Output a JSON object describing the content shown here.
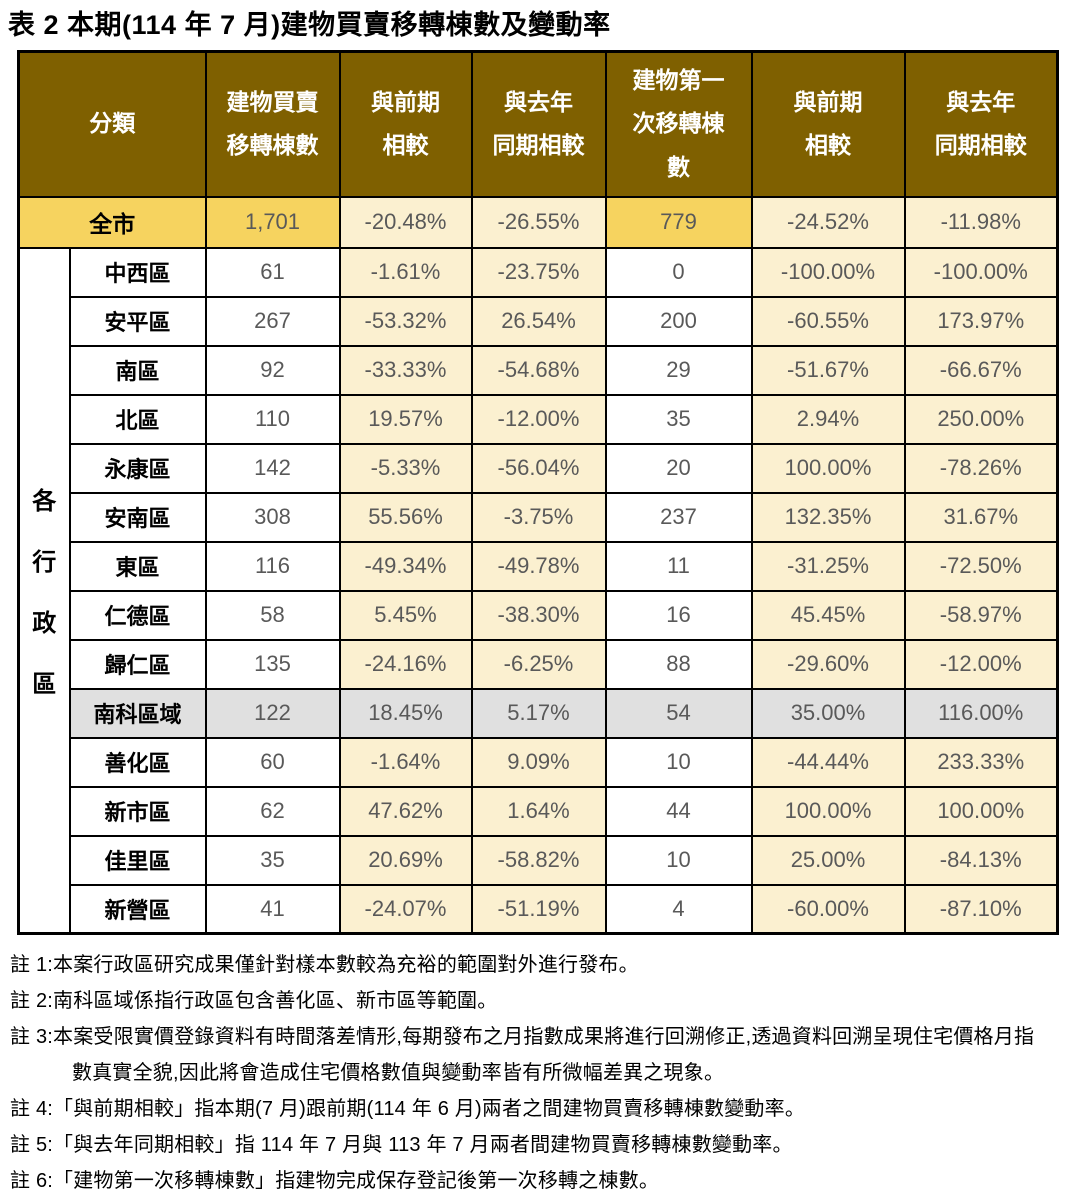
{
  "title": "表 2 本期(114 年 7 月)建物買賣移轉棟數及變動率",
  "table": {
    "headers": [
      "分類",
      "建物買賣\n移轉棟數",
      "與前期\n相較",
      "與去年\n同期相較",
      "建物第一\n次移轉棟\n數",
      "與前期\n相較",
      "與去年\n同期相較"
    ],
    "group_label": "各行政區",
    "citywide": {
      "name": "全市",
      "values": [
        "1,701",
        "-20.48%",
        "-26.55%",
        "779",
        "-24.52%",
        "-11.98%"
      ]
    },
    "districts": [
      {
        "name": "中西區",
        "values": [
          "61",
          "-1.61%",
          "-23.75%",
          "0",
          "-100.00%",
          "-100.00%"
        ]
      },
      {
        "name": "安平區",
        "values": [
          "267",
          "-53.32%",
          "26.54%",
          "200",
          "-60.55%",
          "173.97%"
        ]
      },
      {
        "name": "南區",
        "values": [
          "92",
          "-33.33%",
          "-54.68%",
          "29",
          "-51.67%",
          "-66.67%"
        ]
      },
      {
        "name": "北區",
        "values": [
          "110",
          "19.57%",
          "-12.00%",
          "35",
          "2.94%",
          "250.00%"
        ]
      },
      {
        "name": "永康區",
        "values": [
          "142",
          "-5.33%",
          "-56.04%",
          "20",
          "100.00%",
          "-78.26%"
        ]
      },
      {
        "name": "安南區",
        "values": [
          "308",
          "55.56%",
          "-3.75%",
          "237",
          "132.35%",
          "31.67%"
        ]
      },
      {
        "name": "東區",
        "values": [
          "116",
          "-49.34%",
          "-49.78%",
          "11",
          "-31.25%",
          "-72.50%"
        ]
      },
      {
        "name": "仁德區",
        "values": [
          "58",
          "5.45%",
          "-38.30%",
          "16",
          "45.45%",
          "-58.97%"
        ]
      },
      {
        "name": "歸仁區",
        "values": [
          "135",
          "-24.16%",
          "-6.25%",
          "88",
          "-29.60%",
          "-12.00%"
        ]
      },
      {
        "name": "南科區域",
        "values": [
          "122",
          "18.45%",
          "5.17%",
          "54",
          "35.00%",
          "116.00%"
        ],
        "highlight": "gray"
      },
      {
        "name": "善化區",
        "values": [
          "60",
          "-1.64%",
          "9.09%",
          "10",
          "-44.44%",
          "233.33%"
        ]
      },
      {
        "name": "新市區",
        "values": [
          "62",
          "47.62%",
          "1.64%",
          "44",
          "100.00%",
          "100.00%"
        ]
      },
      {
        "name": "佳里區",
        "values": [
          "35",
          "20.69%",
          "-58.82%",
          "10",
          "25.00%",
          "-84.13%"
        ]
      },
      {
        "name": "新營區",
        "values": [
          "41",
          "-24.07%",
          "-51.19%",
          "4",
          "-60.00%",
          "-87.10%"
        ]
      }
    ]
  },
  "notes": [
    "註 1:本案行政區研究成果僅針對樣本數較為充裕的範圍對外進行發布。",
    "註 2:南科區域係指行政區包含善化區、新市區等範圍。",
    "註 3:本案受限實價登錄資料有時間落差情形,每期發布之月指數成果將進行回溯修正,透過資料回溯呈現住宅價格月指數真實全貌,因此將會造成住宅價格數值與變動率皆有所微幅差異之現象。",
    "註 4:「與前期相較」指本期(7 月)跟前期(114 年 6 月)兩者之間建物買賣移轉棟數變動率。",
    "註 5:「與去年同期相較」指 114 年 7 月與 113 年 7 月兩者間建物買賣移轉棟數變動率。",
    "註 6:「建物第一次移轉棟數」指建物完成保存登記後第一次移轉之棟數。"
  ],
  "colors": {
    "header_bg": "#7F6000",
    "header_text": "#FFFFFF",
    "citywide_row_bg": "#F6D35F",
    "percent_col_bg": "#FBF0D0",
    "highlight_row_bg": "#E0E0E0",
    "value_text": "#595959",
    "label_text": "#000000",
    "border": "#000000"
  }
}
